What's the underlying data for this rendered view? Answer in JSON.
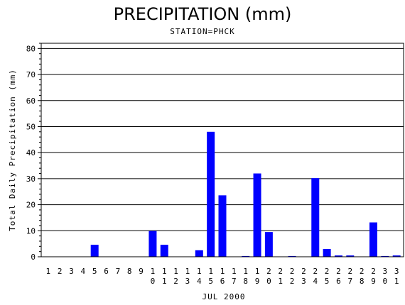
{
  "chart_data": {
    "type": "bar",
    "title": "PRECIPITATION (mm)",
    "subtitle": "STATION=PHCK",
    "xlabel": "JUL 2000",
    "ylabel": "Total Daily Precipitation (mm)",
    "ylim": [
      0,
      82
    ],
    "yticks": [
      0,
      10,
      20,
      30,
      40,
      50,
      60,
      70,
      80
    ],
    "grid": "horizontal",
    "bar_color": "#0000ff",
    "categories": [
      "1",
      "2",
      "3",
      "4",
      "5",
      "6",
      "7",
      "8",
      "9",
      "10",
      "11",
      "12",
      "13",
      "14",
      "15",
      "16",
      "17",
      "18",
      "19",
      "20",
      "21",
      "22",
      "23",
      "24",
      "25",
      "26",
      "27",
      "28",
      "29",
      "30",
      "31"
    ],
    "values": [
      0,
      0,
      0,
      0,
      4.6,
      0,
      0,
      0,
      0,
      9.9,
      4.6,
      0,
      0,
      2.5,
      48.0,
      23.6,
      0,
      0.3,
      32.0,
      9.5,
      0,
      0.3,
      0,
      30.2,
      3.0,
      0.5,
      0.5,
      0,
      13.2,
      0.3,
      0.5
    ]
  }
}
